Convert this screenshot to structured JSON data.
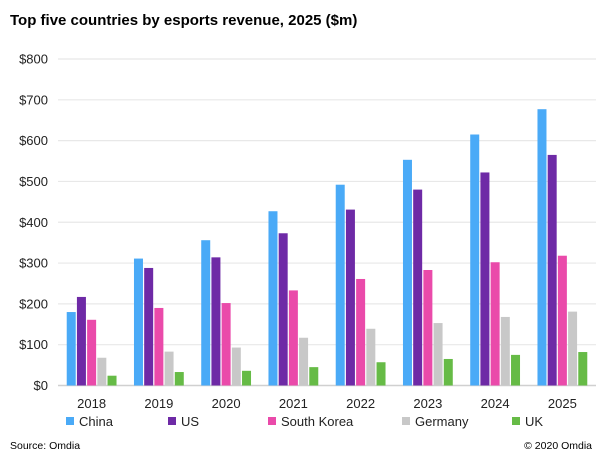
{
  "chart_data": {
    "type": "bar",
    "title": "Top five countries by esports revenue, 2025 ($m)",
    "xlabel": "",
    "ylabel": "",
    "ylim": [
      0,
      800
    ],
    "yticks": [
      "$0",
      "$100",
      "$200",
      "$300",
      "$400",
      "$500",
      "$600",
      "$700",
      "$800"
    ],
    "grid": true,
    "legend_position": "bottom",
    "categories": [
      "2018",
      "2019",
      "2020",
      "2021",
      "2022",
      "2023",
      "2024",
      "2025"
    ],
    "series": [
      {
        "name": "China",
        "color": "#4aaaf7",
        "values": [
          180,
          311,
          356,
          427,
          492,
          553,
          615,
          677
        ]
      },
      {
        "name": "US",
        "color": "#6e2aa6",
        "values": [
          217,
          288,
          314,
          373,
          431,
          480,
          522,
          565
        ]
      },
      {
        "name": "South Korea",
        "color": "#ea4aaa",
        "values": [
          161,
          190,
          202,
          233,
          261,
          283,
          302,
          318
        ]
      },
      {
        "name": "Germany",
        "color": "#c8c8c8",
        "values": [
          68,
          83,
          93,
          117,
          139,
          153,
          168,
          181
        ]
      },
      {
        "name": "UK",
        "color": "#66bb46",
        "values": [
          24,
          33,
          36,
          45,
          57,
          65,
          75,
          82
        ]
      }
    ]
  },
  "footer": {
    "source": "Source: Omdia",
    "copyright": "© 2020 Omdia"
  }
}
